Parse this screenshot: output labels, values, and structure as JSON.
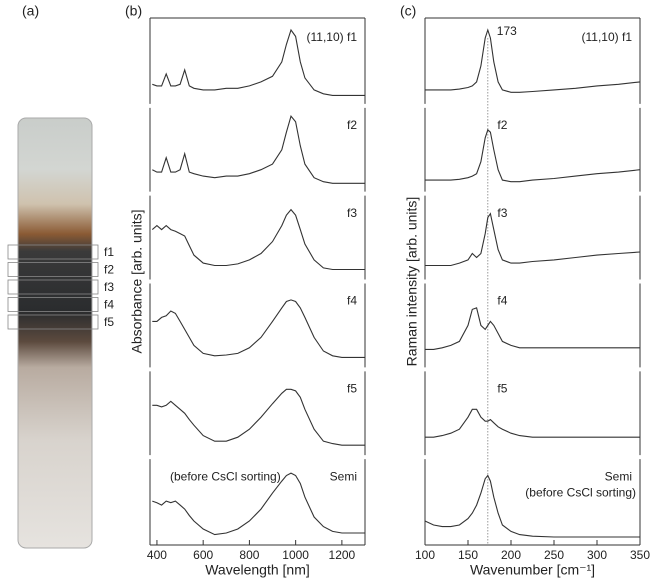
{
  "panel_a": {
    "label": "(a)",
    "fractions": [
      "f1",
      "f2",
      "f3",
      "f4",
      "f5"
    ]
  },
  "chart_data": [
    {
      "type": "line",
      "panel_label": "(b)",
      "xlabel": "Wavelength [nm]",
      "ylabel": "Absorbance [arb. units]",
      "color": "#333333",
      "x": [
        380,
        400,
        420,
        440,
        460,
        480,
        500,
        520,
        540,
        560,
        600,
        650,
        700,
        750,
        800,
        850,
        900,
        940,
        960,
        980,
        1000,
        1020,
        1040,
        1080,
        1120,
        1160,
        1200,
        1250,
        1300
      ],
      "xlim": [
        370,
        1300
      ],
      "xticks": [
        400,
        600,
        800,
        1000,
        1200
      ],
      "ylim": [
        0,
        1
      ],
      "series": [
        {
          "name": "(11,10) f1",
          "values": [
            0.22,
            0.2,
            0.2,
            0.35,
            0.2,
            0.2,
            0.22,
            0.4,
            0.2,
            0.17,
            0.15,
            0.15,
            0.17,
            0.17,
            0.2,
            0.25,
            0.32,
            0.5,
            0.72,
            0.9,
            0.82,
            0.5,
            0.3,
            0.15,
            0.1,
            0.08,
            0.08,
            0.08,
            0.08
          ]
        },
        {
          "name": "f2",
          "values": [
            0.25,
            0.22,
            0.22,
            0.4,
            0.22,
            0.22,
            0.25,
            0.45,
            0.22,
            0.2,
            0.17,
            0.15,
            0.17,
            0.17,
            0.2,
            0.25,
            0.32,
            0.5,
            0.72,
            0.92,
            0.85,
            0.55,
            0.32,
            0.15,
            0.1,
            0.08,
            0.08,
            0.08,
            0.08
          ]
        },
        {
          "name": "f3",
          "values": [
            0.6,
            0.65,
            0.6,
            0.65,
            0.6,
            0.58,
            0.55,
            0.52,
            0.4,
            0.28,
            0.18,
            0.15,
            0.15,
            0.17,
            0.22,
            0.3,
            0.45,
            0.65,
            0.78,
            0.85,
            0.78,
            0.6,
            0.42,
            0.22,
            0.12,
            0.1,
            0.1,
            0.1,
            0.1
          ]
        },
        {
          "name": "f4",
          "values": [
            0.55,
            0.55,
            0.6,
            0.62,
            0.68,
            0.65,
            0.55,
            0.45,
            0.35,
            0.25,
            0.15,
            0.12,
            0.13,
            0.15,
            0.22,
            0.35,
            0.55,
            0.72,
            0.8,
            0.82,
            0.8,
            0.72,
            0.6,
            0.35,
            0.18,
            0.12,
            0.1,
            0.1,
            0.1
          ]
        },
        {
          "name": "f5",
          "values": [
            0.6,
            0.6,
            0.58,
            0.6,
            0.65,
            0.6,
            0.55,
            0.5,
            0.42,
            0.35,
            0.22,
            0.15,
            0.15,
            0.2,
            0.3,
            0.45,
            0.62,
            0.75,
            0.8,
            0.8,
            0.78,
            0.7,
            0.55,
            0.3,
            0.15,
            0.12,
            0.1,
            0.1,
            0.1
          ]
        },
        {
          "name": "Semi",
          "note": "(before CsCl sorting)",
          "values": [
            0.5,
            0.48,
            0.45,
            0.5,
            0.48,
            0.5,
            0.45,
            0.4,
            0.32,
            0.25,
            0.15,
            0.08,
            0.1,
            0.15,
            0.25,
            0.4,
            0.6,
            0.75,
            0.82,
            0.85,
            0.82,
            0.72,
            0.55,
            0.3,
            0.18,
            0.12,
            0.1,
            0.1,
            0.1
          ]
        }
      ]
    },
    {
      "type": "line",
      "panel_label": "(c)",
      "xlabel": "Wavenumber [cm⁻¹]",
      "ylabel": "Raman intensity [arb. units]",
      "color": "#333333",
      "marker_x": 173,
      "x": [
        100,
        110,
        120,
        130,
        140,
        150,
        155,
        160,
        165,
        170,
        173,
        176,
        180,
        185,
        190,
        200,
        210,
        225,
        250,
        275,
        300,
        325,
        350
      ],
      "xlim": [
        100,
        350
      ],
      "xticks": [
        100,
        150,
        200,
        250,
        300,
        350
      ],
      "ylim": [
        0,
        1
      ],
      "series": [
        {
          "name": "(11,10) f1",
          "values": [
            0.15,
            0.15,
            0.15,
            0.15,
            0.16,
            0.18,
            0.2,
            0.25,
            0.45,
            0.8,
            0.9,
            0.8,
            0.5,
            0.25,
            0.15,
            0.12,
            0.12,
            0.13,
            0.15,
            0.17,
            0.2,
            0.22,
            0.25
          ]
        },
        {
          "name": "f2",
          "values": [
            0.12,
            0.12,
            0.12,
            0.12,
            0.13,
            0.15,
            0.17,
            0.2,
            0.35,
            0.65,
            0.75,
            0.72,
            0.5,
            0.25,
            0.12,
            0.1,
            0.1,
            0.12,
            0.14,
            0.17,
            0.2,
            0.22,
            0.25
          ]
        },
        {
          "name": "f3",
          "values": [
            0.15,
            0.15,
            0.15,
            0.15,
            0.18,
            0.22,
            0.3,
            0.25,
            0.3,
            0.55,
            0.75,
            0.8,
            0.6,
            0.35,
            0.22,
            0.18,
            0.18,
            0.2,
            0.22,
            0.25,
            0.28,
            0.3,
            0.32
          ]
        },
        {
          "name": "f4",
          "values": [
            0.2,
            0.2,
            0.22,
            0.25,
            0.3,
            0.5,
            0.7,
            0.72,
            0.5,
            0.45,
            0.5,
            0.55,
            0.5,
            0.4,
            0.3,
            0.25,
            0.22,
            0.22,
            0.22,
            0.22,
            0.22,
            0.22,
            0.22
          ]
        },
        {
          "name": "f5",
          "values": [
            0.2,
            0.2,
            0.22,
            0.25,
            0.3,
            0.45,
            0.55,
            0.55,
            0.45,
            0.4,
            0.4,
            0.42,
            0.38,
            0.33,
            0.3,
            0.25,
            0.22,
            0.2,
            0.2,
            0.2,
            0.2,
            0.2,
            0.2
          ]
        },
        {
          "name": "Semi",
          "note": "(before CsCl sorting)",
          "values": [
            0.25,
            0.2,
            0.18,
            0.18,
            0.2,
            0.28,
            0.35,
            0.45,
            0.6,
            0.78,
            0.82,
            0.75,
            0.55,
            0.35,
            0.2,
            0.12,
            0.08,
            0.06,
            0.05,
            0.05,
            0.05,
            0.05,
            0.05
          ]
        }
      ]
    }
  ]
}
